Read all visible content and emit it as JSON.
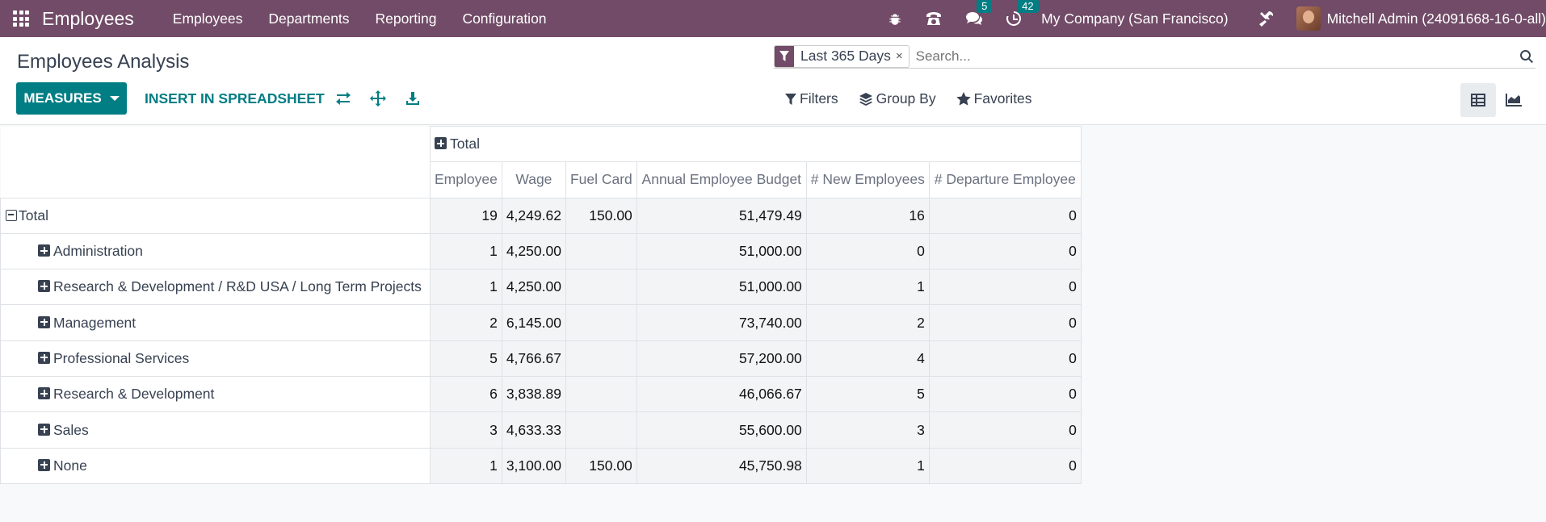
{
  "navbar": {
    "app_name": "Employees",
    "menu": [
      "Employees",
      "Departments",
      "Reporting",
      "Configuration"
    ],
    "messages_count": "5",
    "activities_count": "42",
    "company": "My Company (San Francisco)",
    "user": "Mitchell Admin (24091668-16-0-all)"
  },
  "control": {
    "title": "Employees Analysis",
    "measures_label": "MEASURES",
    "insert_label": "INSERT IN SPREADSHEET",
    "facet_label": "Last 365 Days",
    "facet_close": "×",
    "search_placeholder": "Search...",
    "filters_label": "Filters",
    "groupby_label": "Group By",
    "favorites_label": "Favorites"
  },
  "pivot": {
    "col_header": "Total",
    "measures": [
      "Employee",
      "Wage",
      "Fuel Card",
      "Annual Employee Budget",
      "# New Employees",
      "# Departure Employee"
    ],
    "total_row": {
      "label": "Total",
      "values": [
        "19",
        "4,249.62",
        "150.00",
        "51,479.49",
        "16",
        "0"
      ]
    },
    "rows": [
      {
        "label": "Administration",
        "values": [
          "1",
          "4,250.00",
          "",
          "51,000.00",
          "0",
          "0"
        ]
      },
      {
        "label": "Research & Development / R&D USA / Long Term Projects",
        "values": [
          "1",
          "4,250.00",
          "",
          "51,000.00",
          "1",
          "0"
        ]
      },
      {
        "label": "Management",
        "values": [
          "2",
          "6,145.00",
          "",
          "73,740.00",
          "2",
          "0"
        ]
      },
      {
        "label": "Professional Services",
        "values": [
          "5",
          "4,766.67",
          "",
          "57,200.00",
          "4",
          "0"
        ]
      },
      {
        "label": "Research & Development",
        "values": [
          "6",
          "3,838.89",
          "",
          "46,066.67",
          "5",
          "0"
        ]
      },
      {
        "label": "Sales",
        "values": [
          "3",
          "4,633.33",
          "",
          "55,600.00",
          "3",
          "0"
        ]
      },
      {
        "label": "None",
        "values": [
          "1",
          "3,100.00",
          "150.00",
          "45,750.98",
          "1",
          "0"
        ]
      }
    ]
  }
}
